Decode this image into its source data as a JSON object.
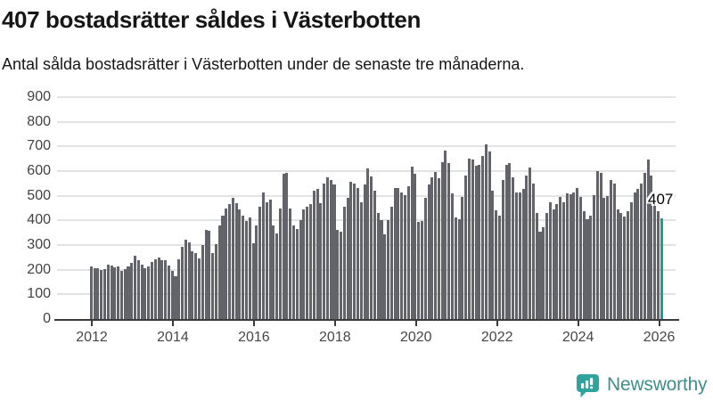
{
  "header": {
    "title": "407 bostadsrätter såldes i Västerbotten",
    "subtitle": "Antal sålda bostadsrätter i Västerbotten under de senaste tre månaderna."
  },
  "annotation": {
    "label": "407"
  },
  "footer": {
    "brand": "Newsworthy"
  },
  "colors": {
    "bar": "#63636a",
    "highlight": "#1b9e9a",
    "grid": "#e3e3e3",
    "axis": "#3b3b3b",
    "logo_teal": "#2fa39e",
    "logo_text": "#3f8e8b"
  },
  "chart_data": {
    "type": "bar",
    "title": "407 bostadsrätter såldes i Västerbotten",
    "subtitle": "Antal sålda bostadsrätter i Västerbotten under de senaste tre månaderna.",
    "xlabel": "",
    "ylabel": "",
    "frequency": "monthly",
    "x_start": "2012-01",
    "x_end": "2026-02",
    "x_tick_labels": [
      "2012",
      "2014",
      "2016",
      "2018",
      "2020",
      "2022",
      "2024",
      "2026"
    ],
    "y_ticks": [
      0,
      100,
      200,
      300,
      400,
      500,
      600,
      700,
      800,
      900
    ],
    "ylim": [
      0,
      900
    ],
    "grid": true,
    "legend": "none",
    "highlight_last": true,
    "last_value": 407,
    "values": [
      215,
      205,
      206,
      200,
      203,
      222,
      218,
      208,
      212,
      196,
      203,
      215,
      228,
      255,
      237,
      222,
      206,
      212,
      231,
      243,
      249,
      237,
      240,
      218,
      195,
      175,
      243,
      292,
      322,
      312,
      273,
      267,
      246,
      300,
      362,
      358,
      267,
      303,
      380,
      420,
      449,
      466,
      490,
      470,
      445,
      420,
      398,
      412,
      309,
      380,
      455,
      515,
      473,
      485,
      378,
      348,
      449,
      588,
      592,
      449,
      378,
      365,
      400,
      443,
      455,
      467,
      521,
      527,
      469,
      551,
      576,
      564,
      545,
      360,
      354,
      455,
      491,
      558,
      551,
      533,
      475,
      545,
      612,
      580,
      520,
      430,
      400,
      345,
      400,
      455,
      533,
      533,
      515,
      503,
      539,
      618,
      588,
      394,
      396,
      491,
      545,
      576,
      596,
      570,
      636,
      682,
      633,
      509,
      412,
      406,
      497,
      582,
      652,
      648,
      622,
      627,
      661,
      709,
      679,
      521,
      442,
      418,
      564,
      627,
      633,
      573,
      512,
      512,
      527,
      582,
      616,
      548,
      430,
      354,
      373,
      430,
      473,
      445,
      467,
      497,
      475,
      509,
      507,
      512,
      531,
      497,
      436,
      406,
      421,
      503,
      600,
      594,
      493,
      500,
      564,
      551,
      445,
      430,
      415,
      436,
      472,
      515,
      529,
      550,
      594,
      648,
      582,
      470,
      436,
      407
    ]
  }
}
